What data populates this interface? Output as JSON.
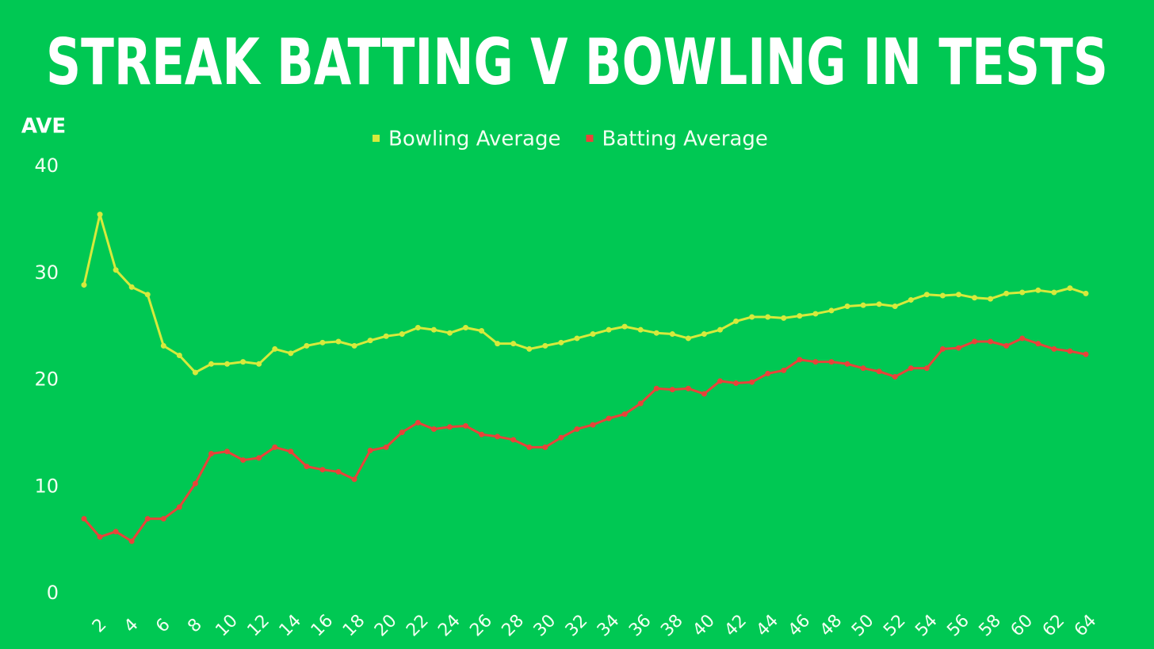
{
  "chart_data": {
    "type": "line",
    "title": "STREAK BATTING V BOWLING IN TESTS",
    "y_label": "AVE",
    "categories": [
      null,
      "2",
      null,
      "4",
      null,
      "6",
      null,
      "8",
      null,
      "10",
      null,
      "12",
      null,
      "14",
      null,
      "16",
      null,
      "18",
      null,
      "20",
      null,
      "22",
      null,
      "24",
      null,
      "26",
      null,
      "28",
      null,
      "30",
      null,
      "32",
      null,
      "34",
      null,
      "36",
      null,
      "38",
      null,
      "40",
      null,
      "42",
      null,
      "44",
      null,
      "46",
      null,
      "48",
      null,
      "50",
      null,
      "52",
      null,
      "54",
      null,
      "56",
      null,
      "58",
      null,
      "60",
      null,
      "62",
      null,
      "64"
    ],
    "series": [
      {
        "name": "Bowling Average",
        "color": "#d6ea3c",
        "values": [
          28.9,
          35.5,
          30.3,
          28.7,
          28.0,
          23.2,
          22.3,
          20.7,
          21.5,
          21.5,
          21.7,
          21.5,
          22.9,
          22.5,
          23.2,
          23.5,
          23.6,
          23.2,
          23.7,
          24.1,
          24.3,
          24.9,
          24.7,
          24.4,
          24.9,
          24.6,
          23.4,
          23.4,
          22.9,
          23.2,
          23.5,
          23.9,
          24.3,
          24.7,
          25.0,
          24.7,
          24.4,
          24.3,
          23.9,
          24.3,
          24.7,
          25.5,
          25.9,
          25.9,
          25.8,
          26.0,
          26.2,
          26.5,
          26.9,
          27.0,
          27.1,
          26.9,
          27.5,
          28.0,
          27.9,
          28.0,
          27.7,
          27.6,
          28.1,
          28.2,
          28.4,
          28.2,
          28.6,
          28.1
        ]
      },
      {
        "name": "Batting Average",
        "color": "#e8433a",
        "values": [
          7.0,
          5.3,
          5.8,
          4.9,
          7.0,
          7.0,
          8.1,
          10.3,
          13.1,
          13.3,
          12.5,
          12.7,
          13.7,
          13.3,
          11.9,
          11.6,
          11.4,
          10.7,
          13.4,
          13.7,
          15.1,
          16.0,
          15.4,
          15.6,
          15.7,
          14.9,
          14.7,
          14.4,
          13.7,
          13.7,
          14.6,
          15.4,
          15.8,
          16.4,
          16.8,
          17.8,
          19.2,
          19.1,
          19.2,
          18.7,
          19.9,
          19.7,
          19.8,
          20.6,
          20.9,
          21.9,
          21.7,
          21.7,
          21.5,
          21.1,
          20.8,
          20.3,
          21.1,
          21.1,
          22.9,
          23.0,
          23.6,
          23.6,
          23.2,
          23.9,
          23.4,
          22.9,
          22.7,
          22.4
        ]
      }
    ],
    "ylim": [
      0,
      40
    ],
    "yticks": [
      0,
      10,
      20,
      30,
      40
    ],
    "grid": false,
    "legend": "top"
  }
}
